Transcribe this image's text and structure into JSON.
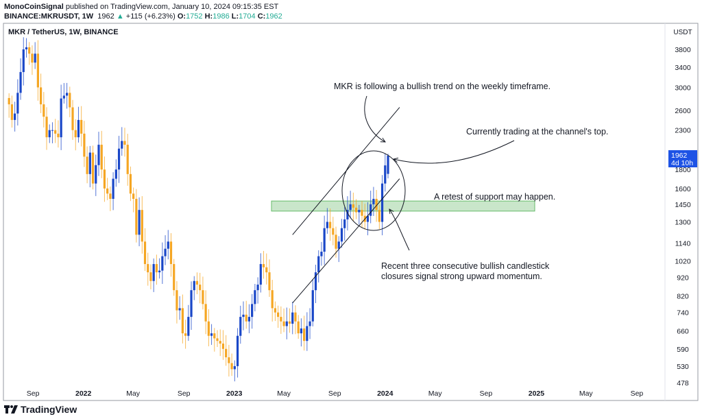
{
  "header": {
    "author": "MonoCoinSignal",
    "published_text": "published on TradingView.com, January 10, 2024 09:15:35 EST",
    "symbol": "BINANCE:MKRUSDT, 1W",
    "last": "1962",
    "change": "+115 (+6.23%)",
    "o_label": "O:",
    "o": "1752",
    "h_label": "H:",
    "h": "1986",
    "l_label": "L:",
    "l": "1704",
    "c_label": "C:",
    "c": "1962"
  },
  "chart_title": "MKR / TetherUS, 1W, BINANCE",
  "brand": "TradingView",
  "colors": {
    "up": "#1a47c8",
    "down": "#f5a623",
    "change_up": "#22ab94",
    "price_label": "#1e53e5",
    "support_zone": "#a5d6a7"
  },
  "chart_data": {
    "type": "candlestick",
    "scale": "log",
    "currency": "USDT",
    "ylim": [
      478,
      3900
    ],
    "y_ticks": [
      3800,
      3400,
      3000,
      2600,
      2300,
      1800,
      1600,
      1450,
      1300,
      1140,
      1020,
      920,
      820,
      740,
      660,
      590,
      530,
      478
    ],
    "x_ticks": [
      {
        "label": "Sep",
        "date": "2021-09-01",
        "bold": false
      },
      {
        "label": "2022",
        "date": "2022-01-01",
        "bold": true
      },
      {
        "label": "May",
        "date": "2022-05-01",
        "bold": false
      },
      {
        "label": "Sep",
        "date": "2022-09-01",
        "bold": false
      },
      {
        "label": "2023",
        "date": "2023-01-01",
        "bold": true
      },
      {
        "label": "May",
        "date": "2023-05-01",
        "bold": false
      },
      {
        "label": "Sep",
        "date": "2023-09-01",
        "bold": false
      },
      {
        "label": "2024",
        "date": "2024-01-01",
        "bold": true
      },
      {
        "label": "May",
        "date": "2024-05-01",
        "bold": false
      },
      {
        "label": "Sep",
        "date": "2024-09-01",
        "bold": false
      },
      {
        "label": "2025",
        "date": "2025-01-01",
        "bold": true
      },
      {
        "label": "May",
        "date": "2025-05-01",
        "bold": false
      },
      {
        "label": "Sep",
        "date": "2025-09-01",
        "bold": false
      }
    ],
    "last_candle_date": "2024-01-08",
    "weekly_closes": [
      2700,
      2450,
      2550,
      2900,
      3300,
      3800,
      3850,
      3700,
      3500,
      3700,
      3000,
      2700,
      2500,
      2200,
      2300,
      2300,
      2250,
      2200,
      2800,
      2850,
      2900,
      2650,
      2300,
      2200,
      2450,
      2250,
      1950,
      1750,
      2000,
      1650,
      1850,
      2100,
      1800,
      1600,
      1550,
      1500,
      1700,
      1800,
      2050,
      2150,
      2100,
      1750,
      1550,
      1500,
      1200,
      1400,
      1150,
      1000,
      950,
      900,
      1000,
      950,
      960,
      1050,
      1100,
      1150,
      1000,
      850,
      750,
      760,
      650,
      640,
      720,
      850,
      900,
      880,
      850,
      780,
      700,
      640,
      650,
      630,
      620,
      610,
      590,
      560,
      540,
      520,
      530,
      640,
      720,
      730,
      700,
      720,
      780,
      850,
      880,
      1000,
      980,
      950,
      850,
      760,
      740,
      720,
      700,
      680,
      700,
      690,
      740,
      700,
      650,
      670,
      620,
      680,
      700,
      850,
      950,
      1050,
      1080,
      1250,
      1300,
      1250,
      1200,
      1100,
      1150,
      1250,
      1320,
      1400,
      1450,
      1420,
      1380,
      1400,
      1350,
      1300,
      1350,
      1450,
      1500,
      1400,
      1300,
      1650,
      1847
    ],
    "last_candle": {
      "open": 1752,
      "high": 1986,
      "low": 1704,
      "close": 1962
    },
    "current_price_label": "1962",
    "countdown_label": "4d 10h",
    "support_zone": [
      1390,
      1480
    ],
    "channel": {
      "upper": [
        {
          "date": "2023-05-22",
          "price": 1200
        },
        {
          "date": "2024-02-05",
          "price": 2650
        }
      ],
      "lower": [
        {
          "date": "2023-05-22",
          "price": 785
        },
        {
          "date": "2024-02-05",
          "price": 1700
        }
      ]
    },
    "annotations": [
      "MKR is following a bullish trend on the weekly timeframe.",
      "Currently trading at the channel's top.",
      "A retest of support may happen.",
      "Recent three consecutive bullish candlestick",
      "closures signal strong upward momentum."
    ]
  }
}
